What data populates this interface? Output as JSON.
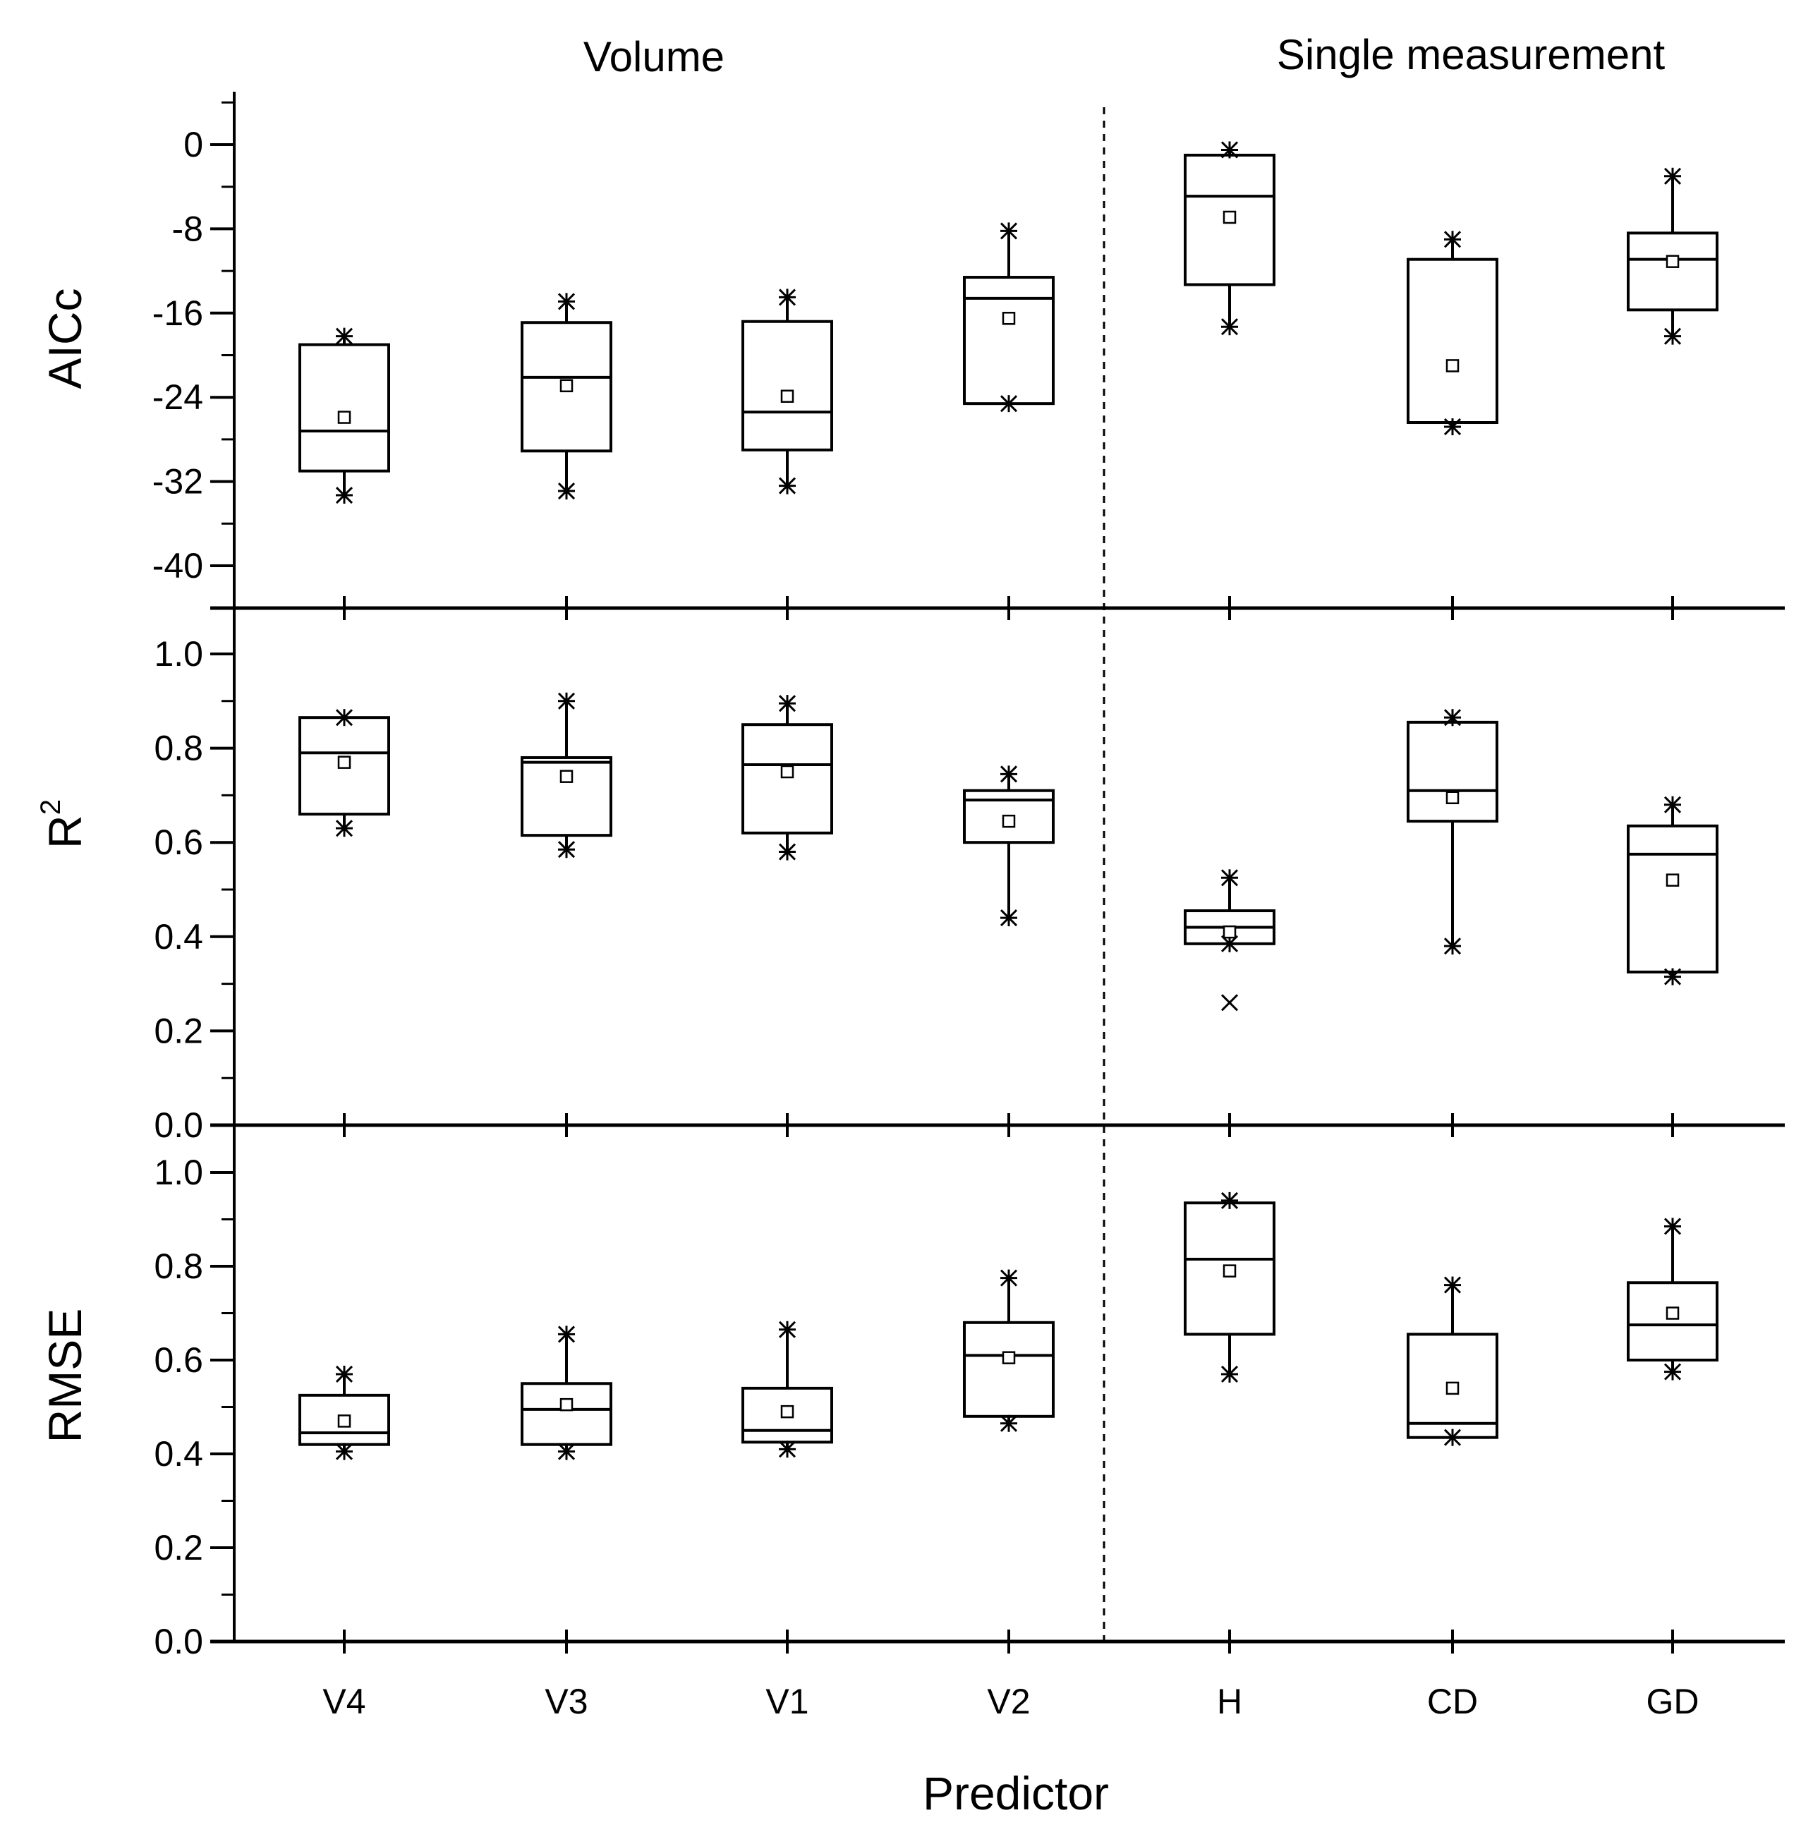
{
  "chart_data": {
    "type": "box",
    "xlabel": "Predictor",
    "categories": [
      "V4",
      "V3",
      "V1",
      "V2",
      "H",
      "CD",
      "GD"
    ],
    "groups": [
      {
        "title": "Volume",
        "categories": [
          "V4",
          "V3",
          "V1",
          "V2"
        ]
      },
      {
        "title": "Single measurement",
        "categories": [
          "H",
          "CD",
          "GD"
        ]
      }
    ],
    "panels": [
      {
        "name": "aicc",
        "ylabel": "AICc",
        "ylim": [
          -44.5,
          4.8
        ],
        "ticks": [
          {
            "v": 0,
            "label": "0"
          },
          {
            "v": -8,
            "label": "-8"
          },
          {
            "v": -16,
            "label": "-16"
          },
          {
            "v": -24,
            "label": "-24"
          },
          {
            "v": -32,
            "label": "-32"
          },
          {
            "v": -40,
            "label": "-40"
          }
        ],
        "minor_ticks": [
          4,
          -4,
          -12,
          -20,
          -28,
          -36,
          -44
        ],
        "boxes": [
          {
            "q1": -31.0,
            "median": -27.2,
            "q3": -19.0,
            "mean": -25.9,
            "wlo": -33.3,
            "whi": -18.2,
            "outliers": []
          },
          {
            "q1": -29.1,
            "median": -22.1,
            "q3": -16.9,
            "mean": -22.9,
            "wlo": -32.9,
            "whi": -14.9,
            "outliers": []
          },
          {
            "q1": -29.0,
            "median": -25.4,
            "q3": -16.8,
            "mean": -23.9,
            "wlo": -32.4,
            "whi": -14.5,
            "outliers": []
          },
          {
            "q1": -24.6,
            "median": -14.6,
            "q3": -12.6,
            "mean": -16.5,
            "wlo": -24.6,
            "whi": -8.2,
            "outliers": []
          },
          {
            "q1": -13.3,
            "median": -4.9,
            "q3": -1.0,
            "mean": -6.9,
            "wlo": -17.3,
            "whi": -0.5,
            "outliers": []
          },
          {
            "q1": -26.4,
            "median": -26.4,
            "q3": -10.9,
            "mean": -21.0,
            "wlo": -26.8,
            "whi": -9.0,
            "outliers": []
          },
          {
            "q1": -15.7,
            "median": -10.9,
            "q3": -8.4,
            "mean": -11.1,
            "wlo": -18.2,
            "whi": -3.0,
            "outliers": []
          }
        ]
      },
      {
        "name": "r2",
        "ylabel": "R",
        "ylabel_sup": "2",
        "ylim": [
          0.0,
          1.0
        ],
        "ticks": [
          {
            "v": 0.0,
            "label": "0.0"
          },
          {
            "v": 0.2,
            "label": "0.2"
          },
          {
            "v": 0.4,
            "label": "0.4"
          },
          {
            "v": 0.6,
            "label": "0.6"
          },
          {
            "v": 0.8,
            "label": "0.8"
          },
          {
            "v": 1.0,
            "label": "1.0"
          }
        ],
        "minor_ticks": [
          0.1,
          0.3,
          0.5,
          0.7,
          0.9
        ],
        "boxes": [
          {
            "q1": 0.66,
            "median": 0.79,
            "q3": 0.865,
            "mean": 0.77,
            "wlo": 0.63,
            "whi": 0.865,
            "outliers": []
          },
          {
            "q1": 0.615,
            "median": 0.77,
            "q3": 0.78,
            "mean": 0.74,
            "wlo": 0.585,
            "whi": 0.9,
            "outliers": []
          },
          {
            "q1": 0.62,
            "median": 0.765,
            "q3": 0.85,
            "mean": 0.75,
            "wlo": 0.58,
            "whi": 0.895,
            "outliers": []
          },
          {
            "q1": 0.6,
            "median": 0.69,
            "q3": 0.71,
            "mean": 0.645,
            "wlo": 0.44,
            "whi": 0.745,
            "outliers": []
          },
          {
            "q1": 0.385,
            "median": 0.42,
            "q3": 0.455,
            "mean": 0.41,
            "wlo": 0.385,
            "whi": 0.525,
            "outliers": [
              0.26
            ]
          },
          {
            "q1": 0.645,
            "median": 0.71,
            "q3": 0.855,
            "mean": 0.695,
            "wlo": 0.38,
            "whi": 0.865,
            "outliers": []
          },
          {
            "q1": 0.325,
            "median": 0.575,
            "q3": 0.635,
            "mean": 0.52,
            "wlo": 0.315,
            "whi": 0.68,
            "outliers": []
          }
        ]
      },
      {
        "name": "rmse",
        "ylabel": "RMSE",
        "ylim": [
          0.0,
          1.0
        ],
        "ticks": [
          {
            "v": 0.0,
            "label": "0.0"
          },
          {
            "v": 0.2,
            "label": "0.2"
          },
          {
            "v": 0.4,
            "label": "0.4"
          },
          {
            "v": 0.6,
            "label": "0.6"
          },
          {
            "v": 0.8,
            "label": "0.8"
          },
          {
            "v": 1.0,
            "label": "1.0"
          }
        ],
        "minor_ticks": [
          0.1,
          0.3,
          0.5,
          0.7,
          0.9
        ],
        "boxes": [
          {
            "q1": 0.42,
            "median": 0.445,
            "q3": 0.525,
            "mean": 0.47,
            "wlo": 0.405,
            "whi": 0.57,
            "outliers": []
          },
          {
            "q1": 0.42,
            "median": 0.495,
            "q3": 0.55,
            "mean": 0.505,
            "wlo": 0.405,
            "whi": 0.655,
            "outliers": []
          },
          {
            "q1": 0.425,
            "median": 0.45,
            "q3": 0.54,
            "mean": 0.49,
            "wlo": 0.41,
            "whi": 0.665,
            "outliers": []
          },
          {
            "q1": 0.48,
            "median": 0.61,
            "q3": 0.68,
            "mean": 0.605,
            "wlo": 0.465,
            "whi": 0.775,
            "outliers": []
          },
          {
            "q1": 0.655,
            "median": 0.815,
            "q3": 0.935,
            "mean": 0.79,
            "wlo": 0.57,
            "whi": 0.94,
            "outliers": []
          },
          {
            "q1": 0.435,
            "median": 0.465,
            "q3": 0.655,
            "mean": 0.54,
            "wlo": 0.435,
            "whi": 0.76,
            "outliers": []
          },
          {
            "q1": 0.6,
            "median": 0.675,
            "q3": 0.765,
            "mean": 0.7,
            "wlo": 0.575,
            "whi": 0.885,
            "outliers": []
          }
        ]
      }
    ]
  }
}
